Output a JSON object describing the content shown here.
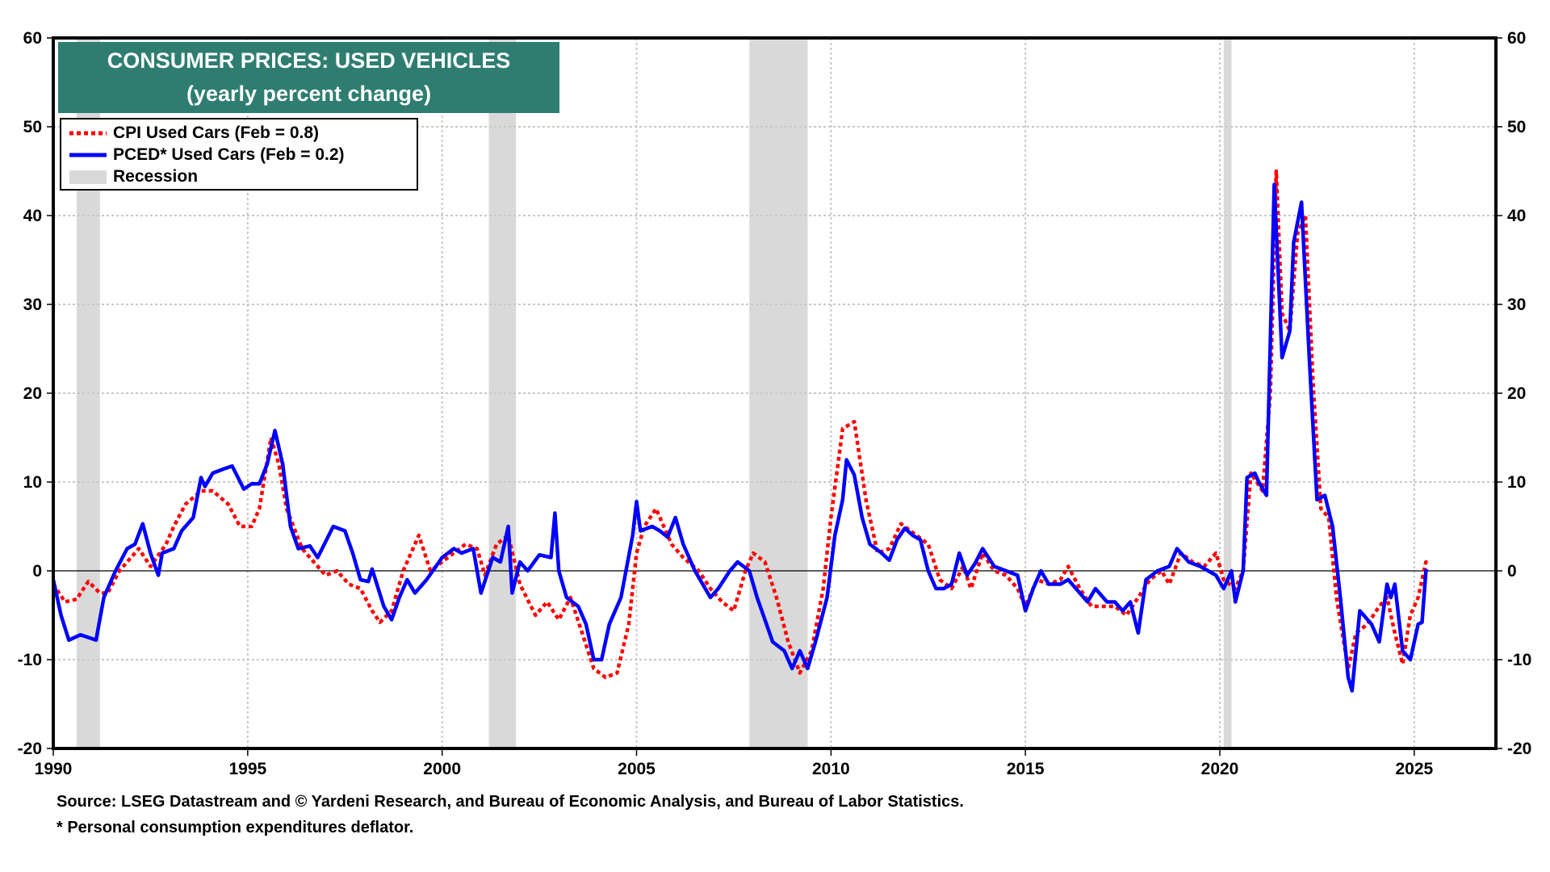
{
  "chart_data": {
    "type": "line",
    "title": "CONSUMER PRICES: USED VEHICLES",
    "subtitle": "(yearly percent change)",
    "xlabel": "",
    "ylabel": "",
    "xlim": [
      1990,
      2027.1
    ],
    "ylim": [
      -20,
      60
    ],
    "x_ticks": [
      1990,
      1995,
      2000,
      2005,
      2010,
      2015,
      2020,
      2025
    ],
    "x_tick_labels": [
      "1990",
      "1995",
      "2000",
      "2005",
      "2010",
      "2015",
      "2020",
      "2025"
    ],
    "y_ticks": [
      -20,
      -10,
      0,
      10,
      20,
      30,
      40,
      50,
      60
    ],
    "y_tick_labels": [
      "-20",
      "-10",
      "0",
      "10",
      "20",
      "30",
      "40",
      "50",
      "60"
    ],
    "grid": true,
    "legend_position": "top-left",
    "legend": [
      {
        "label": "CPI Used Cars (Feb = 0.8)",
        "style": "dotted",
        "color": "#ff0000"
      },
      {
        "label": "PCED* Used Cars (Feb = 0.2)",
        "style": "solid",
        "color": "#0000ff"
      },
      {
        "label": "Recession",
        "style": "band",
        "color": "#d9d9d9"
      }
    ],
    "recessions": [
      [
        1990.6,
        1991.2
      ],
      [
        2001.2,
        2001.9
      ],
      [
        2007.9,
        2009.4
      ],
      [
        2020.1,
        2020.3
      ]
    ],
    "series": [
      {
        "name": "CPI Used Cars",
        "color": "#ff0000",
        "style": "dotted",
        "x": [
          1990.0,
          1990.3,
          1990.6,
          1990.9,
          1991.2,
          1991.4,
          1991.7,
          1992.0,
          1992.2,
          1992.5,
          1992.9,
          1993.1,
          1993.4,
          1993.8,
          1994.1,
          1994.5,
          1994.8,
          1995.1,
          1995.3,
          1995.6,
          1995.8,
          1996.0,
          1996.4,
          1996.7,
          1997.0,
          1997.3,
          1997.6,
          1997.9,
          1998.2,
          1998.4,
          1998.7,
          1999.0,
          1999.4,
          1999.7,
          2000.0,
          2000.3,
          2000.6,
          2000.9,
          2001.1,
          2001.4,
          2001.7,
          2002.0,
          2002.4,
          2002.7,
          2003.0,
          2003.3,
          2003.6,
          2003.9,
          2004.2,
          2004.5,
          2004.8,
          2005.0,
          2005.2,
          2005.5,
          2005.9,
          2006.2,
          2006.6,
          2006.9,
          2007.2,
          2007.5,
          2007.8,
          2008.0,
          2008.3,
          2008.6,
          2008.9,
          2009.2,
          2009.5,
          2009.8,
          2010.0,
          2010.3,
          2010.6,
          2010.9,
          2011.2,
          2011.5,
          2011.8,
          2012.2,
          2012.5,
          2012.8,
          2013.1,
          2013.4,
          2013.6,
          2013.9,
          2014.2,
          2014.5,
          2014.8,
          2015.0,
          2015.3,
          2015.6,
          2015.9,
          2016.1,
          2016.4,
          2016.7,
          2017.0,
          2017.3,
          2017.6,
          2017.9,
          2018.2,
          2018.5,
          2018.7,
          2019.0,
          2019.3,
          2019.6,
          2019.9,
          2020.1,
          2020.4,
          2020.6,
          2020.8,
          2021.1,
          2021.3,
          2021.45,
          2021.6,
          2021.8,
          2022.0,
          2022.2,
          2022.4,
          2022.6,
          2022.8,
          2023.0,
          2023.3,
          2023.5,
          2023.8,
          2024.1,
          2024.3,
          2024.5,
          2024.7,
          2024.9,
          2025.1,
          2025.3,
          2025.33
        ],
        "values": [
          -1.5,
          -3.5,
          -3.2,
          -1.2,
          -2.5,
          -2.5,
          0,
          1.5,
          2.5,
          0.5,
          3,
          5,
          7.5,
          9,
          9,
          7.5,
          5,
          5,
          7,
          15,
          12,
          7,
          2.5,
          1,
          -0.5,
          0,
          -1.5,
          -2,
          -4.5,
          -5.8,
          -4.5,
          0,
          4,
          0,
          1,
          2,
          3,
          2.5,
          -0.5,
          3,
          4,
          -1.5,
          -5,
          -3.5,
          -5.5,
          -3,
          -7,
          -11,
          -12,
          -11.5,
          -6,
          2,
          5,
          7,
          3,
          1.5,
          0,
          -2,
          -3.5,
          -4.5,
          0,
          2,
          1,
          -3,
          -8,
          -11.5,
          -9,
          -2,
          6,
          16,
          16.8,
          8,
          2,
          2.5,
          5.3,
          4,
          3,
          -1,
          -2,
          0.5,
          -2,
          2,
          0,
          -0.5,
          -2,
          -4,
          -1,
          -1.5,
          -1,
          0.5,
          -2,
          -4,
          -4,
          -4,
          -5,
          -3,
          -1,
          0,
          -1.5,
          2,
          1,
          0.5,
          2,
          -1,
          -2,
          0,
          11,
          9,
          20,
          45,
          29,
          27,
          38,
          40,
          21,
          7,
          6,
          -3,
          -11,
          -7,
          -6,
          -4,
          -3,
          -7,
          -10.5,
          -5,
          -3,
          1,
          0.8
        ]
      },
      {
        "name": "PCED* Used Cars",
        "color": "#0000ff",
        "style": "solid",
        "x": [
          1990.0,
          1990.2,
          1990.4,
          1990.7,
          1990.9,
          1991.1,
          1991.3,
          1991.6,
          1991.9,
          1992.1,
          1992.3,
          1992.5,
          1992.7,
          1992.8,
          1993.1,
          1993.3,
          1993.6,
          1993.8,
          1993.9,
          1994.1,
          1994.4,
          1994.6,
          1994.9,
          1995.1,
          1995.3,
          1995.5,
          1995.7,
          1995.9,
          1996.1,
          1996.3,
          1996.6,
          1996.8,
          1997.2,
          1997.5,
          1997.7,
          1997.9,
          1998.1,
          1998.2,
          1998.5,
          1998.7,
          1998.9,
          1999.1,
          1999.3,
          1999.6,
          2000.0,
          2000.3,
          2000.5,
          2000.8,
          2001.0,
          2001.3,
          2001.5,
          2001.7,
          2001.8,
          2002.0,
          2002.2,
          2002.5,
          2002.8,
          2002.9,
          2003.0,
          2003.2,
          2003.5,
          2003.7,
          2003.9,
          2004.1,
          2004.3,
          2004.6,
          2004.9,
          2005.0,
          2005.1,
          2005.4,
          2005.6,
          2005.8,
          2006.0,
          2006.2,
          2006.5,
          2006.9,
          2007.1,
          2007.4,
          2007.6,
          2007.9,
          2008.1,
          2008.3,
          2008.5,
          2008.8,
          2009.0,
          2009.2,
          2009.4,
          2009.6,
          2009.9,
          2010.1,
          2010.3,
          2010.4,
          2010.6,
          2010.8,
          2011.0,
          2011.3,
          2011.5,
          2011.7,
          2011.9,
          2012.1,
          2012.3,
          2012.5,
          2012.7,
          2012.9,
          2013.1,
          2013.3,
          2013.5,
          2013.7,
          2013.9,
          2014.2,
          2014.5,
          2014.8,
          2015.0,
          2015.2,
          2015.4,
          2015.6,
          2015.9,
          2016.1,
          2016.4,
          2016.6,
          2016.8,
          2017.1,
          2017.3,
          2017.5,
          2017.7,
          2017.9,
          2018.1,
          2018.4,
          2018.7,
          2018.9,
          2019.2,
          2019.5,
          2019.9,
          2020.1,
          2020.3,
          2020.4,
          2020.6,
          2020.7,
          2020.9,
          2021.0,
          2021.2,
          2021.4,
          2021.6,
          2021.8,
          2021.9,
          2022.1,
          2022.3,
          2022.5,
          2022.7,
          2022.9,
          2023.1,
          2023.3,
          2023.4,
          2023.6,
          2023.9,
          2024.1,
          2024.3,
          2024.4,
          2024.5,
          2024.7,
          2024.9,
          2025.1,
          2025.2,
          2025.3,
          2025.33
        ],
        "values": [
          -1,
          -5,
          -7.8,
          -7.2,
          -7.5,
          -7.8,
          -3,
          0,
          2.5,
          3,
          5.3,
          2,
          -0.5,
          2,
          2.5,
          4.5,
          6,
          10.5,
          9.5,
          11,
          11.5,
          11.8,
          9.2,
          9.8,
          9.8,
          12,
          15.8,
          12,
          5,
          2.5,
          2.8,
          1.5,
          5,
          4.5,
          2,
          -1,
          -1.2,
          0.2,
          -4,
          -5.5,
          -3,
          -1,
          -2.5,
          -1,
          1.5,
          2.5,
          2,
          2.5,
          -2.5,
          1.5,
          1,
          5,
          -2.5,
          1,
          0,
          1.8,
          1.5,
          6.5,
          0,
          -3,
          -4,
          -6,
          -10,
          -10,
          -6,
          -3,
          4,
          7.8,
          4.5,
          5,
          4.5,
          3.8,
          6,
          3,
          0,
          -3,
          -2,
          0,
          1,
          0,
          -3,
          -5.5,
          -8,
          -9,
          -11,
          -9,
          -11,
          -8,
          -3,
          4,
          8,
          12.5,
          10.8,
          6,
          3,
          2,
          1.2,
          3.5,
          4.8,
          4,
          3.5,
          0,
          -2,
          -2,
          -1.5,
          2,
          -0.5,
          0.8,
          2.5,
          0.5,
          0,
          -0.5,
          -4.5,
          -2,
          0,
          -1.5,
          -1.5,
          -1,
          -2.5,
          -3.5,
          -2,
          -3.5,
          -3.5,
          -4.5,
          -3.5,
          -7,
          -1,
          0,
          0.5,
          2.5,
          1,
          0.5,
          -0.5,
          -2,
          0,
          -3.5,
          0,
          10.5,
          11,
          10,
          8.5,
          43.5,
          24,
          27,
          37,
          41.5,
          24,
          8,
          8.5,
          5,
          -3,
          -12,
          -13.5,
          -4.5,
          -6,
          -8,
          -1.5,
          -3,
          -1.5,
          -9,
          -10,
          -6,
          -5.8,
          0,
          0.2
        ]
      }
    ]
  },
  "footer": {
    "source": "Source: LSEG Datastream and © Yardeni Research, and Bureau of Economic Analysis, and Bureau of Labor Statistics.",
    "note": "* Personal consumption expenditures deflator."
  }
}
